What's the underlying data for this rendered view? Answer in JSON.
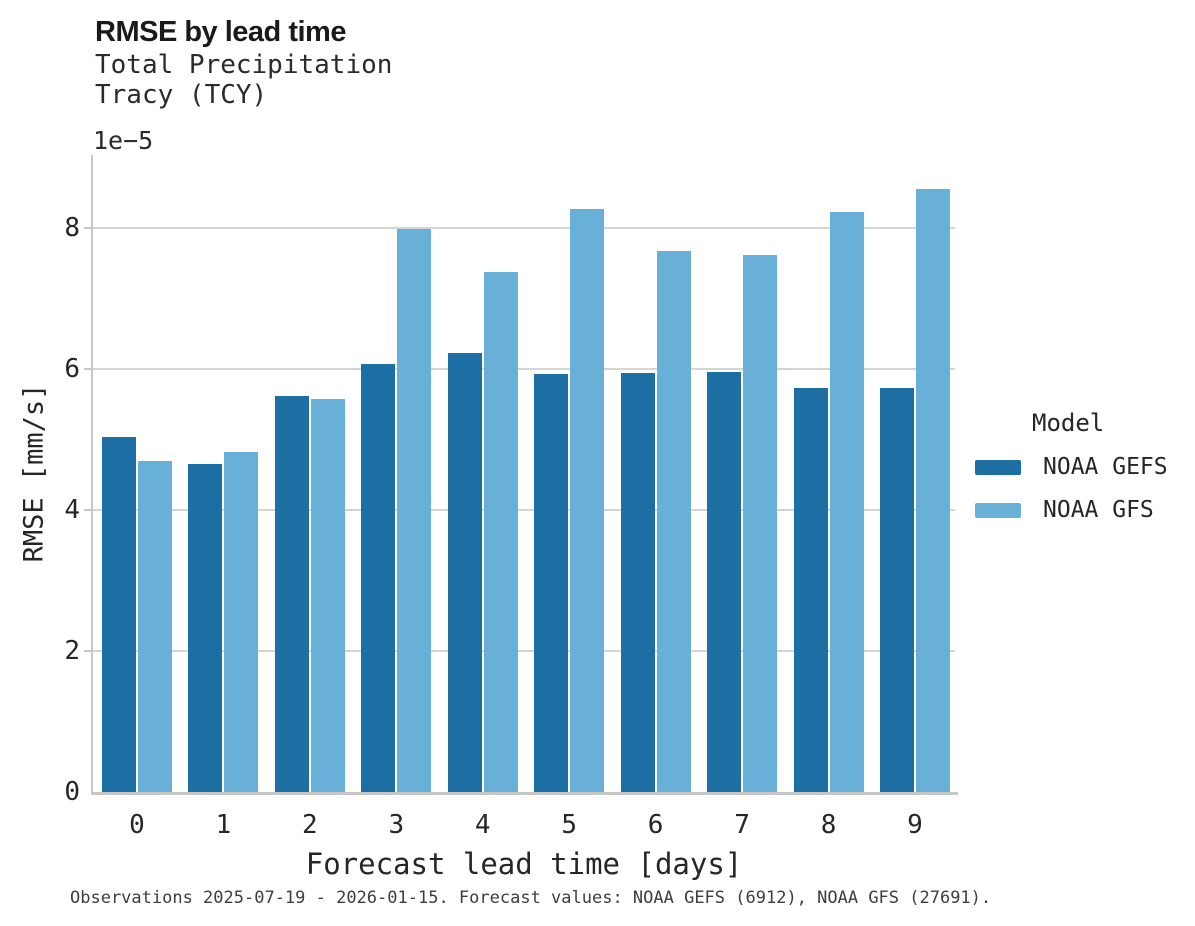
{
  "header": {
    "title": "RMSE by lead time",
    "subtitle_line1": "Total Precipitation",
    "subtitle_line2": "Tracy (TCY)"
  },
  "chart_data": {
    "type": "bar",
    "title": "RMSE by lead time",
    "subtitle": [
      "Total Precipitation",
      "Tracy (TCY)"
    ],
    "categories": [
      "0",
      "1",
      "2",
      "3",
      "4",
      "5",
      "6",
      "7",
      "8",
      "9"
    ],
    "series": [
      {
        "name": "NOAA GEFS",
        "color": "#1d6fa3",
        "values": [
          5.03,
          4.65,
          5.62,
          6.07,
          6.22,
          5.93,
          5.94,
          5.96,
          5.73,
          5.73
        ]
      },
      {
        "name": "NOAA GFS",
        "color": "#69b0d8",
        "values": [
          4.7,
          4.82,
          5.57,
          7.99,
          7.38,
          8.27,
          7.68,
          7.62,
          8.23,
          8.56
        ]
      }
    ],
    "value_scale": "1e-5",
    "offset_label": "1e−5",
    "xlabel": "Forecast lead time [days]",
    "ylabel": "RMSE [mm/s]",
    "ylim": [
      0,
      9.035
    ],
    "yticks": [
      0,
      2,
      4,
      6,
      8
    ],
    "grid": true,
    "legend_title": "Model",
    "legend_position": "right"
  },
  "legend": {
    "title": "Model",
    "items": [
      {
        "label": "NOAA GEFS",
        "color": "#1d6fa3"
      },
      {
        "label": "NOAA GFS",
        "color": "#69b0d8"
      }
    ]
  },
  "caption": "Observations 2025-07-19 - 2026-01-15. Forecast values: NOAA GEFS (6912), NOAA GFS (27691)."
}
